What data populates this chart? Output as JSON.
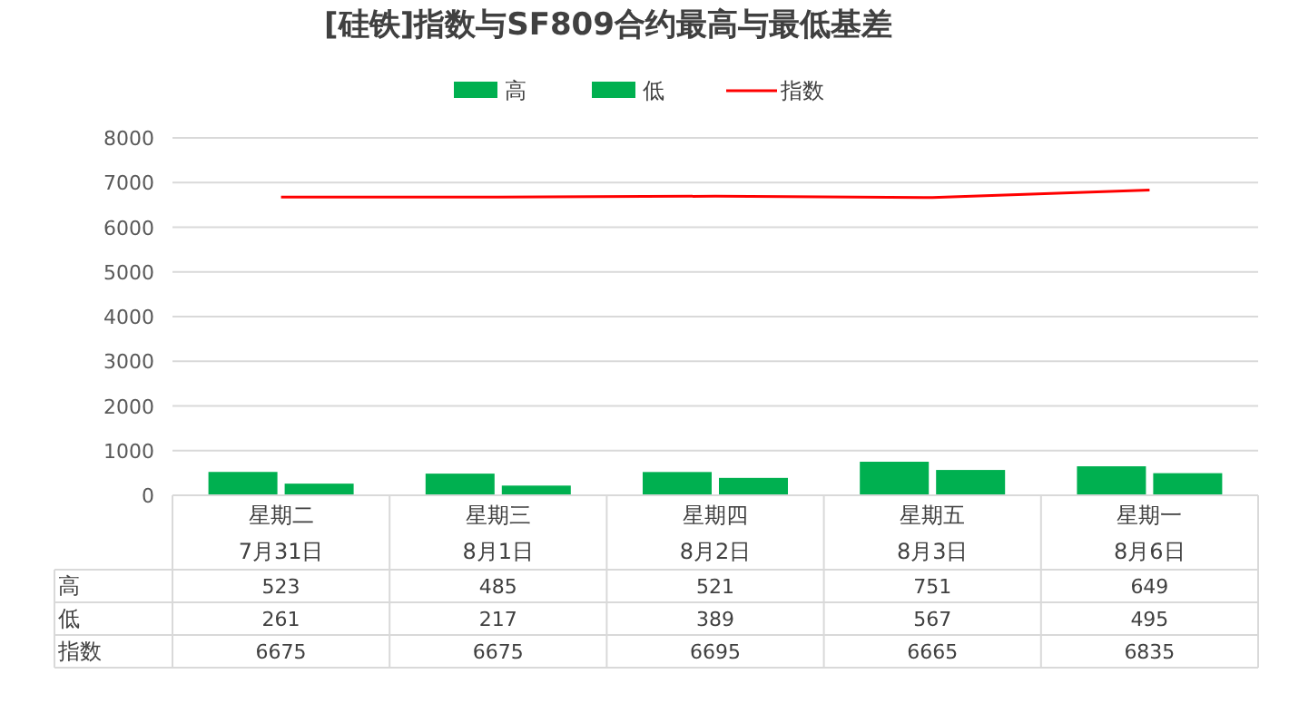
{
  "chart_data": {
    "type": "bar",
    "title": "[硅铁]指数与SF809合约最高与最低基差",
    "categories": [
      "星期二 7月31日",
      "星期三 8月1日",
      "星期四 8月2日",
      "星期五 8月3日",
      "星期一 8月6日"
    ],
    "series": [
      {
        "name": "高",
        "color": "#00b050",
        "values": [
          523,
          485,
          521,
          751,
          649
        ]
      },
      {
        "name": "低",
        "color": "#00b050",
        "values": [
          261,
          217,
          389,
          567,
          495
        ]
      },
      {
        "name": "指数",
        "type": "line",
        "color": "#ff0000",
        "values": [
          6675,
          6675,
          6695,
          6665,
          6835
        ]
      }
    ],
    "ylim": [
      0,
      8000
    ],
    "yticks": [
      0,
      1000,
      2000,
      3000,
      4000,
      5000,
      6000,
      7000,
      8000
    ],
    "grid": "y",
    "legend": "top",
    "data_labels": true
  }
}
